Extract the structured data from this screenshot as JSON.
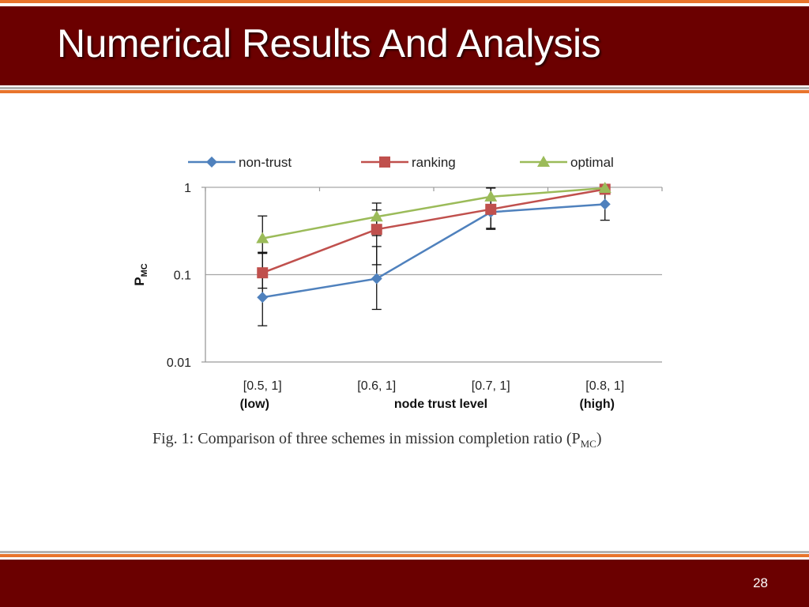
{
  "slide": {
    "title": "Numerical Results And Analysis",
    "page_number": "28",
    "colors": {
      "header_bg": "#6b0000",
      "accent_line": "#e8742c",
      "grey_line": "#b3b3b3"
    }
  },
  "caption": {
    "main": "Fig. 1: Comparison of three schemes in mission completion ratio (P",
    "sub": "MC",
    "end": ")"
  },
  "chart_data": {
    "type": "line",
    "yscale": "log",
    "ylim": [
      0.01,
      1
    ],
    "yticks": [
      "1",
      "0.1",
      "0.01"
    ],
    "ylabel_main": "P",
    "ylabel_sub": "MC",
    "xlabel": "node trust level",
    "categories": [
      "[0.5, 1]",
      "[0.6, 1]",
      "[0.7, 1]",
      "[0.8, 1]"
    ],
    "category_notes": [
      "(low)",
      "",
      "",
      "(high)"
    ],
    "grid": true,
    "legend_position": "top",
    "series": [
      {
        "name": "non-trust",
        "color": "#4f81bd",
        "marker": "diamond",
        "values": [
          0.055,
          0.09,
          0.52,
          0.64
        ],
        "errors": [
          [
            0.026,
            0.175
          ],
          [
            0.04,
            0.21
          ],
          [
            0.33,
            0.73
          ],
          [
            0.42,
            0.96
          ]
        ]
      },
      {
        "name": "ranking",
        "color": "#c0504d",
        "marker": "square",
        "values": [
          0.105,
          0.33,
          0.56,
          0.95
        ],
        "errors": [
          [
            0.07,
            0.18
          ],
          [
            0.13,
            0.55
          ],
          [
            0.34,
            0.98
          ],
          [
            0.93,
            1.0
          ]
        ]
      },
      {
        "name": "optimal",
        "color": "#9bbb59",
        "marker": "triangle",
        "values": [
          0.26,
          0.46,
          0.78,
          0.98
        ],
        "errors": [
          [
            0.18,
            0.47
          ],
          [
            0.28,
            0.66
          ],
          [
            0.6,
            0.99
          ],
          [
            0.96,
            1.0
          ]
        ]
      }
    ]
  }
}
